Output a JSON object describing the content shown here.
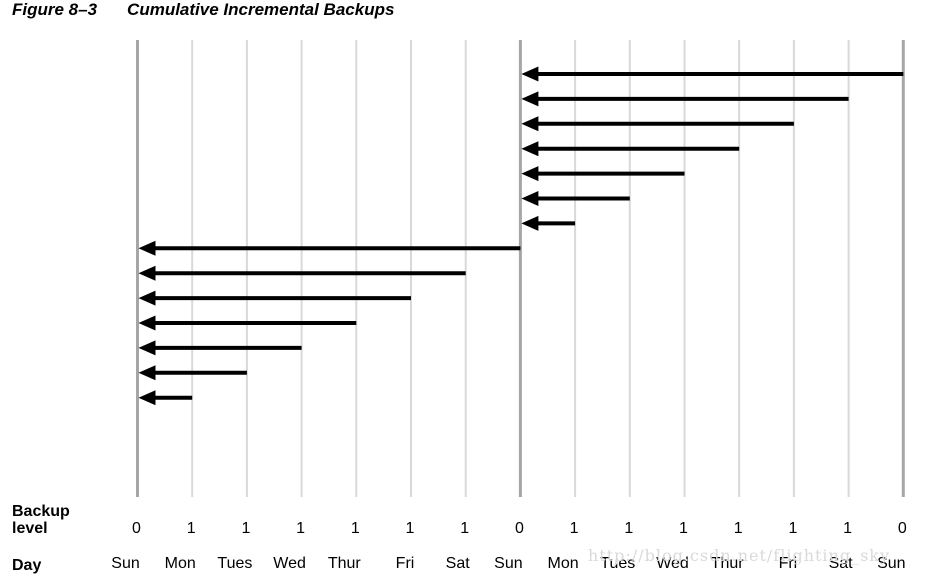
{
  "figure": {
    "number": "Figure 8–3",
    "title": "Cumulative Incremental Backups"
  },
  "labels": {
    "backup_level_line1": "Backup",
    "backup_level_line2": "level",
    "day": "Day"
  },
  "chart_data": {
    "type": "diagram",
    "days": [
      "Sun",
      "Mon",
      "Tues",
      "Wed",
      "Thur",
      "Fri",
      "Sat",
      "Sun",
      "Mon",
      "Tues",
      "Wed",
      "Thur",
      "Fri",
      "Sat",
      "Sun"
    ],
    "levels": [
      "0",
      "1",
      "1",
      "1",
      "1",
      "1",
      "1",
      "0",
      "1",
      "1",
      "1",
      "1",
      "1",
      "1",
      "0"
    ],
    "arrows": [
      {
        "from_day_index": 14,
        "to_day_index": 7
      },
      {
        "from_day_index": 13,
        "to_day_index": 7
      },
      {
        "from_day_index": 12,
        "to_day_index": 7
      },
      {
        "from_day_index": 11,
        "to_day_index": 7
      },
      {
        "from_day_index": 10,
        "to_day_index": 7
      },
      {
        "from_day_index": 9,
        "to_day_index": 7
      },
      {
        "from_day_index": 8,
        "to_day_index": 7
      },
      {
        "from_day_index": 7,
        "to_day_index": 0
      },
      {
        "from_day_index": 6,
        "to_day_index": 0
      },
      {
        "from_day_index": 5,
        "to_day_index": 0
      },
      {
        "from_day_index": 4,
        "to_day_index": 0
      },
      {
        "from_day_index": 3,
        "to_day_index": 0
      },
      {
        "from_day_index": 2,
        "to_day_index": 0
      },
      {
        "from_day_index": 1,
        "to_day_index": 0
      }
    ],
    "full_backup_days": [
      0,
      7,
      14
    ],
    "colors": {
      "full_backup_line": "#a6a6a6",
      "incremental_line": "#d9d9d9",
      "arrow": "#000000"
    }
  },
  "watermark": "http://blog.csdn.net/flighting_sky"
}
